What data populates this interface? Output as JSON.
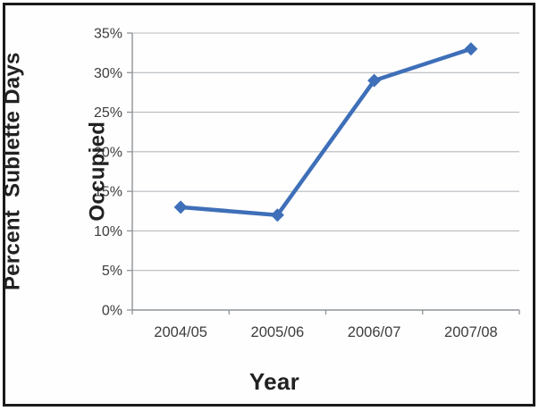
{
  "chart_data": {
    "type": "line",
    "title": "",
    "xlabel": "Year",
    "ylabel": "Percent Sublette Days Occupied",
    "ylabel_lines": [
      "Percent  Sublette Days",
      "Occupied"
    ],
    "categories": [
      "2004/05",
      "2005/06",
      "2006/07",
      "2007/08"
    ],
    "series": [
      {
        "name": "Percent Sublette Days Occupied",
        "values": [
          13,
          12,
          29,
          33
        ]
      }
    ],
    "ylim": [
      0,
      35
    ],
    "y_tick_step": 5,
    "y_tick_labels": [
      "0%",
      "5%",
      "10%",
      "15%",
      "20%",
      "25%",
      "30%",
      "35%"
    ],
    "grid": true,
    "legend": "none",
    "line_color": "#3e6fb8",
    "marker": "diamond",
    "grid_color": "#b6babd",
    "axis_color": "#8f9396",
    "tick_label_color": "#3d3d3d"
  }
}
